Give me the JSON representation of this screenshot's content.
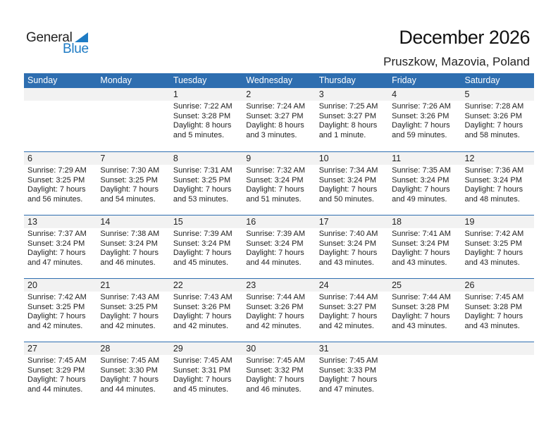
{
  "logo": {
    "general": "General",
    "blue": "Blue"
  },
  "title": "December 2026",
  "location": "Pruszkow, Mazovia, Poland",
  "colors": {
    "header": "#2e6eb0",
    "band": "#f2f2f2",
    "logo_blue": "#1e7bc4"
  },
  "weekdays": [
    "Sunday",
    "Monday",
    "Tuesday",
    "Wednesday",
    "Thursday",
    "Friday",
    "Saturday"
  ],
  "weeks": [
    [
      null,
      null,
      {
        "day": "1",
        "sunrise": "Sunrise: 7:22 AM",
        "sunset": "Sunset: 3:28 PM",
        "daylight1": "Daylight: 8 hours",
        "daylight2": "and 5 minutes."
      },
      {
        "day": "2",
        "sunrise": "Sunrise: 7:24 AM",
        "sunset": "Sunset: 3:27 PM",
        "daylight1": "Daylight: 8 hours",
        "daylight2": "and 3 minutes."
      },
      {
        "day": "3",
        "sunrise": "Sunrise: 7:25 AM",
        "sunset": "Sunset: 3:27 PM",
        "daylight1": "Daylight: 8 hours",
        "daylight2": "and 1 minute."
      },
      {
        "day": "4",
        "sunrise": "Sunrise: 7:26 AM",
        "sunset": "Sunset: 3:26 PM",
        "daylight1": "Daylight: 7 hours",
        "daylight2": "and 59 minutes."
      },
      {
        "day": "5",
        "sunrise": "Sunrise: 7:28 AM",
        "sunset": "Sunset: 3:26 PM",
        "daylight1": "Daylight: 7 hours",
        "daylight2": "and 58 minutes."
      }
    ],
    [
      {
        "day": "6",
        "sunrise": "Sunrise: 7:29 AM",
        "sunset": "Sunset: 3:25 PM",
        "daylight1": "Daylight: 7 hours",
        "daylight2": "and 56 minutes."
      },
      {
        "day": "7",
        "sunrise": "Sunrise: 7:30 AM",
        "sunset": "Sunset: 3:25 PM",
        "daylight1": "Daylight: 7 hours",
        "daylight2": "and 54 minutes."
      },
      {
        "day": "8",
        "sunrise": "Sunrise: 7:31 AM",
        "sunset": "Sunset: 3:25 PM",
        "daylight1": "Daylight: 7 hours",
        "daylight2": "and 53 minutes."
      },
      {
        "day": "9",
        "sunrise": "Sunrise: 7:32 AM",
        "sunset": "Sunset: 3:24 PM",
        "daylight1": "Daylight: 7 hours",
        "daylight2": "and 51 minutes."
      },
      {
        "day": "10",
        "sunrise": "Sunrise: 7:34 AM",
        "sunset": "Sunset: 3:24 PM",
        "daylight1": "Daylight: 7 hours",
        "daylight2": "and 50 minutes."
      },
      {
        "day": "11",
        "sunrise": "Sunrise: 7:35 AM",
        "sunset": "Sunset: 3:24 PM",
        "daylight1": "Daylight: 7 hours",
        "daylight2": "and 49 minutes."
      },
      {
        "day": "12",
        "sunrise": "Sunrise: 7:36 AM",
        "sunset": "Sunset: 3:24 PM",
        "daylight1": "Daylight: 7 hours",
        "daylight2": "and 48 minutes."
      }
    ],
    [
      {
        "day": "13",
        "sunrise": "Sunrise: 7:37 AM",
        "sunset": "Sunset: 3:24 PM",
        "daylight1": "Daylight: 7 hours",
        "daylight2": "and 47 minutes."
      },
      {
        "day": "14",
        "sunrise": "Sunrise: 7:38 AM",
        "sunset": "Sunset: 3:24 PM",
        "daylight1": "Daylight: 7 hours",
        "daylight2": "and 46 minutes."
      },
      {
        "day": "15",
        "sunrise": "Sunrise: 7:39 AM",
        "sunset": "Sunset: 3:24 PM",
        "daylight1": "Daylight: 7 hours",
        "daylight2": "and 45 minutes."
      },
      {
        "day": "16",
        "sunrise": "Sunrise: 7:39 AM",
        "sunset": "Sunset: 3:24 PM",
        "daylight1": "Daylight: 7 hours",
        "daylight2": "and 44 minutes."
      },
      {
        "day": "17",
        "sunrise": "Sunrise: 7:40 AM",
        "sunset": "Sunset: 3:24 PM",
        "daylight1": "Daylight: 7 hours",
        "daylight2": "and 43 minutes."
      },
      {
        "day": "18",
        "sunrise": "Sunrise: 7:41 AM",
        "sunset": "Sunset: 3:24 PM",
        "daylight1": "Daylight: 7 hours",
        "daylight2": "and 43 minutes."
      },
      {
        "day": "19",
        "sunrise": "Sunrise: 7:42 AM",
        "sunset": "Sunset: 3:25 PM",
        "daylight1": "Daylight: 7 hours",
        "daylight2": "and 43 minutes."
      }
    ],
    [
      {
        "day": "20",
        "sunrise": "Sunrise: 7:42 AM",
        "sunset": "Sunset: 3:25 PM",
        "daylight1": "Daylight: 7 hours",
        "daylight2": "and 42 minutes."
      },
      {
        "day": "21",
        "sunrise": "Sunrise: 7:43 AM",
        "sunset": "Sunset: 3:25 PM",
        "daylight1": "Daylight: 7 hours",
        "daylight2": "and 42 minutes."
      },
      {
        "day": "22",
        "sunrise": "Sunrise: 7:43 AM",
        "sunset": "Sunset: 3:26 PM",
        "daylight1": "Daylight: 7 hours",
        "daylight2": "and 42 minutes."
      },
      {
        "day": "23",
        "sunrise": "Sunrise: 7:44 AM",
        "sunset": "Sunset: 3:26 PM",
        "daylight1": "Daylight: 7 hours",
        "daylight2": "and 42 minutes."
      },
      {
        "day": "24",
        "sunrise": "Sunrise: 7:44 AM",
        "sunset": "Sunset: 3:27 PM",
        "daylight1": "Daylight: 7 hours",
        "daylight2": "and 42 minutes."
      },
      {
        "day": "25",
        "sunrise": "Sunrise: 7:44 AM",
        "sunset": "Sunset: 3:28 PM",
        "daylight1": "Daylight: 7 hours",
        "daylight2": "and 43 minutes."
      },
      {
        "day": "26",
        "sunrise": "Sunrise: 7:45 AM",
        "sunset": "Sunset: 3:28 PM",
        "daylight1": "Daylight: 7 hours",
        "daylight2": "and 43 minutes."
      }
    ],
    [
      {
        "day": "27",
        "sunrise": "Sunrise: 7:45 AM",
        "sunset": "Sunset: 3:29 PM",
        "daylight1": "Daylight: 7 hours",
        "daylight2": "and 44 minutes."
      },
      {
        "day": "28",
        "sunrise": "Sunrise: 7:45 AM",
        "sunset": "Sunset: 3:30 PM",
        "daylight1": "Daylight: 7 hours",
        "daylight2": "and 44 minutes."
      },
      {
        "day": "29",
        "sunrise": "Sunrise: 7:45 AM",
        "sunset": "Sunset: 3:31 PM",
        "daylight1": "Daylight: 7 hours",
        "daylight2": "and 45 minutes."
      },
      {
        "day": "30",
        "sunrise": "Sunrise: 7:45 AM",
        "sunset": "Sunset: 3:32 PM",
        "daylight1": "Daylight: 7 hours",
        "daylight2": "and 46 minutes."
      },
      {
        "day": "31",
        "sunrise": "Sunrise: 7:45 AM",
        "sunset": "Sunset: 3:33 PM",
        "daylight1": "Daylight: 7 hours",
        "daylight2": "and 47 minutes."
      },
      null,
      null
    ]
  ]
}
